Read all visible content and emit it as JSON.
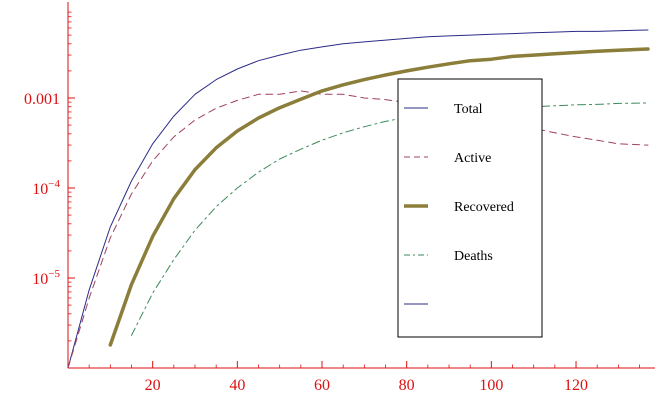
{
  "chart_data": {
    "type": "line",
    "title": "",
    "xlabel": "",
    "ylabel": "",
    "y_scale": "log",
    "xlim": [
      0,
      137
    ],
    "ylim": [
      1e-06,
      0.01
    ],
    "x_ticks": [
      20,
      40,
      60,
      80,
      100,
      120
    ],
    "x_tick_labels": [
      "20",
      "40",
      "60",
      "80",
      "100",
      "120"
    ],
    "y_ticks": [
      1e-05,
      0.0001,
      0.001
    ],
    "y_tick_labels": [
      {
        "base": "10",
        "exp": "−5"
      },
      {
        "base": "10",
        "exp": "−4"
      },
      {
        "base": "0.001",
        "exp": ""
      }
    ],
    "tick_label_color": "#dd1111",
    "axis_color": "#dd1111",
    "grid": false,
    "legend_placement": "center-right",
    "x": [
      0,
      5,
      10,
      15,
      20,
      25,
      30,
      35,
      40,
      45,
      50,
      55,
      60,
      65,
      70,
      75,
      80,
      85,
      90,
      95,
      100,
      105,
      110,
      115,
      120,
      125,
      130,
      137
    ],
    "series": [
      {
        "name": "Total",
        "color": "#2b2b88",
        "style": "solid",
        "width": 1,
        "values": [
          1e-06,
          7.4e-06,
          3.7e-05,
          0.00012,
          0.00031,
          0.00063,
          0.0011,
          0.0016,
          0.0021,
          0.0026,
          0.003,
          0.0034,
          0.0037,
          0.004,
          0.0042,
          0.0044,
          0.0046,
          0.0048,
          0.0049,
          0.005,
          0.0051,
          0.0052,
          0.0053,
          0.0054,
          0.0055,
          0.0055,
          0.0056,
          0.0057
        ]
      },
      {
        "name": "Active",
        "color": "#a04060",
        "style": "dashed",
        "width": 1,
        "values": [
          1e-06,
          6e-06,
          2.8e-05,
          8.6e-05,
          0.0002,
          0.00037,
          0.00057,
          0.00077,
          0.00094,
          0.0011,
          0.0011,
          0.0012,
          0.0011,
          0.0011,
          0.001,
          0.00096,
          0.00089,
          0.00081,
          0.00074,
          0.00066,
          0.00059,
          0.00052,
          0.00046,
          0.00041,
          0.00037,
          0.00034,
          0.00031,
          0.0003
        ]
      },
      {
        "name": "Recovered",
        "color": "#8b7d3a",
        "style": "solid",
        "width": 3.5,
        "values": [
          null,
          null,
          1.8e-06,
          8.5e-06,
          2.9e-05,
          7.6e-05,
          0.00016,
          0.00028,
          0.00043,
          0.0006,
          0.00078,
          0.00097,
          0.0012,
          0.0014,
          0.0016,
          0.0018,
          0.002,
          0.0022,
          0.0024,
          0.0026,
          0.0027,
          0.0029,
          0.003,
          0.0031,
          0.0032,
          0.0033,
          0.0034,
          0.0035
        ]
      },
      {
        "name": "Deaths",
        "color": "#3a8a5a",
        "style": "dashdot",
        "width": 1,
        "values": [
          null,
          null,
          null,
          2.3e-06,
          6.8e-06,
          1.6e-05,
          3.4e-05,
          6.2e-05,
          0.0001,
          0.00015,
          0.00021,
          0.00027,
          0.00034,
          0.00041,
          0.00048,
          0.00055,
          0.00061,
          0.00066,
          0.0007,
          0.00073,
          0.00076,
          0.00078,
          0.0008,
          0.00082,
          0.00084,
          0.00085,
          0.00087,
          0.00088
        ]
      }
    ],
    "legend_entries": [
      {
        "label": "Total",
        "color": "#2b2b88",
        "style": "solid",
        "width": 1
      },
      {
        "label": "Active",
        "color": "#a04060",
        "style": "dashed",
        "width": 1
      },
      {
        "label": "Recovered",
        "color": "#8b7d3a",
        "style": "solid",
        "width": 3.5
      },
      {
        "label": "Deaths",
        "color": "#3a8a5a",
        "style": "dashdot",
        "width": 1
      },
      {
        "label": "",
        "color": "#2b2b88",
        "style": "solid",
        "width": 1
      }
    ]
  }
}
